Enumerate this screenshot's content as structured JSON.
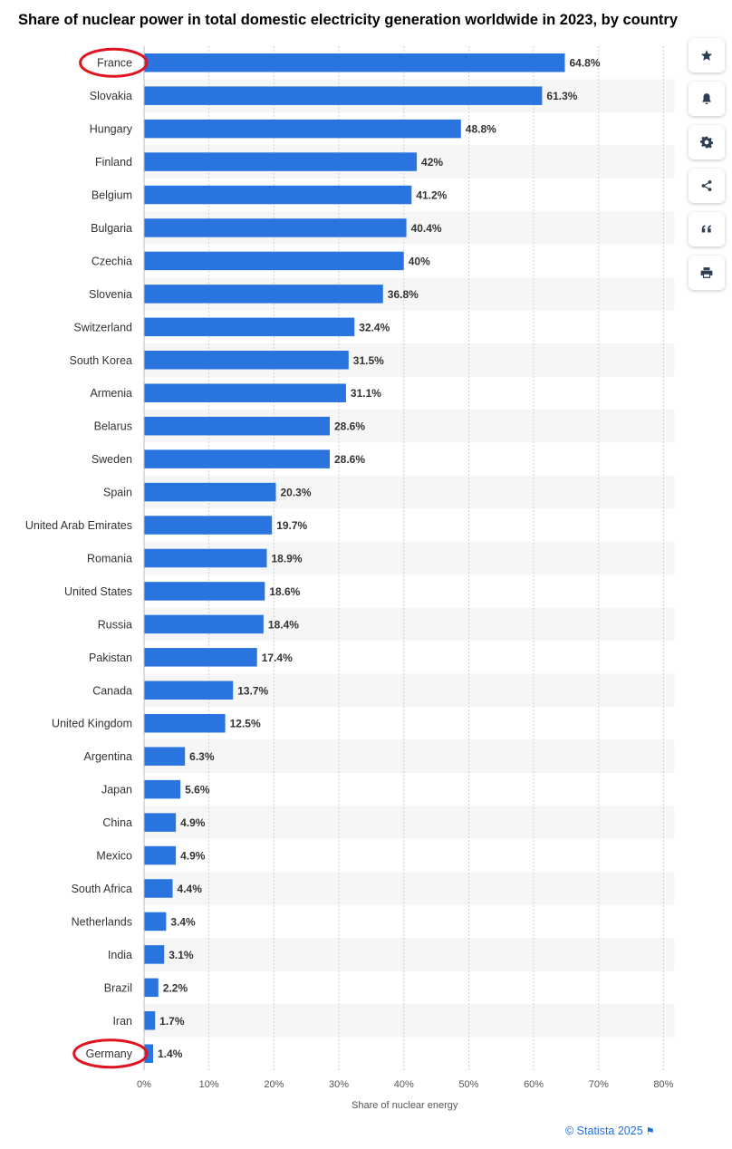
{
  "toolbar": {
    "buttons": [
      {
        "name": "favorite",
        "icon": "star-icon"
      },
      {
        "name": "notify",
        "icon": "bell-icon"
      },
      {
        "name": "settings",
        "icon": "gear-icon"
      },
      {
        "name": "share",
        "icon": "share-icon"
      },
      {
        "name": "cite",
        "icon": "quote-icon"
      },
      {
        "name": "print",
        "icon": "print-icon"
      }
    ]
  },
  "footer": {
    "source": "© Statista 2025"
  },
  "colors": {
    "bar": "#2a74df",
    "highlight_circle": "#e0141e",
    "stripe": "#f6f6f6",
    "grid": "#cfcfcf"
  },
  "highlighted": [
    "France",
    "Germany"
  ],
  "chart_data": {
    "type": "bar",
    "orientation": "horizontal",
    "title": "Share of nuclear power in total domestic electricity generation worldwide in 2023, by country",
    "xlabel": "Share of nuclear energy",
    "ylabel": "",
    "xlim": [
      0,
      80
    ],
    "xticks": [
      "0%",
      "10%",
      "20%",
      "30%",
      "40%",
      "50%",
      "60%",
      "70%",
      "80%"
    ],
    "grid": true,
    "categories": [
      "France",
      "Slovakia",
      "Hungary",
      "Finland",
      "Belgium",
      "Bulgaria",
      "Czechia",
      "Slovenia",
      "Switzerland",
      "South Korea",
      "Armenia",
      "Belarus",
      "Sweden",
      "Spain",
      "United Arab Emirates",
      "Romania",
      "United States",
      "Russia",
      "Pakistan",
      "Canada",
      "United Kingdom",
      "Argentina",
      "Japan",
      "China",
      "Mexico",
      "South Africa",
      "Netherlands",
      "India",
      "Brazil",
      "Iran",
      "Germany"
    ],
    "values": [
      64.8,
      61.3,
      48.8,
      42,
      41.2,
      40.4,
      40,
      36.8,
      32.4,
      31.5,
      31.1,
      28.6,
      28.6,
      20.3,
      19.7,
      18.9,
      18.6,
      18.4,
      17.4,
      13.7,
      12.5,
      6.3,
      5.6,
      4.9,
      4.9,
      4.4,
      3.4,
      3.1,
      2.2,
      1.7,
      1.4
    ],
    "labels": [
      "64.8%",
      "61.3%",
      "48.8%",
      "42%",
      "41.2%",
      "40.4%",
      "40%",
      "36.8%",
      "32.4%",
      "31.5%",
      "31.1%",
      "28.6%",
      "28.6%",
      "20.3%",
      "19.7%",
      "18.9%",
      "18.6%",
      "18.4%",
      "17.4%",
      "13.7%",
      "12.5%",
      "6.3%",
      "5.6%",
      "4.9%",
      "4.9%",
      "4.4%",
      "3.4%",
      "3.1%",
      "2.2%",
      "1.7%",
      "1.4%"
    ]
  }
}
